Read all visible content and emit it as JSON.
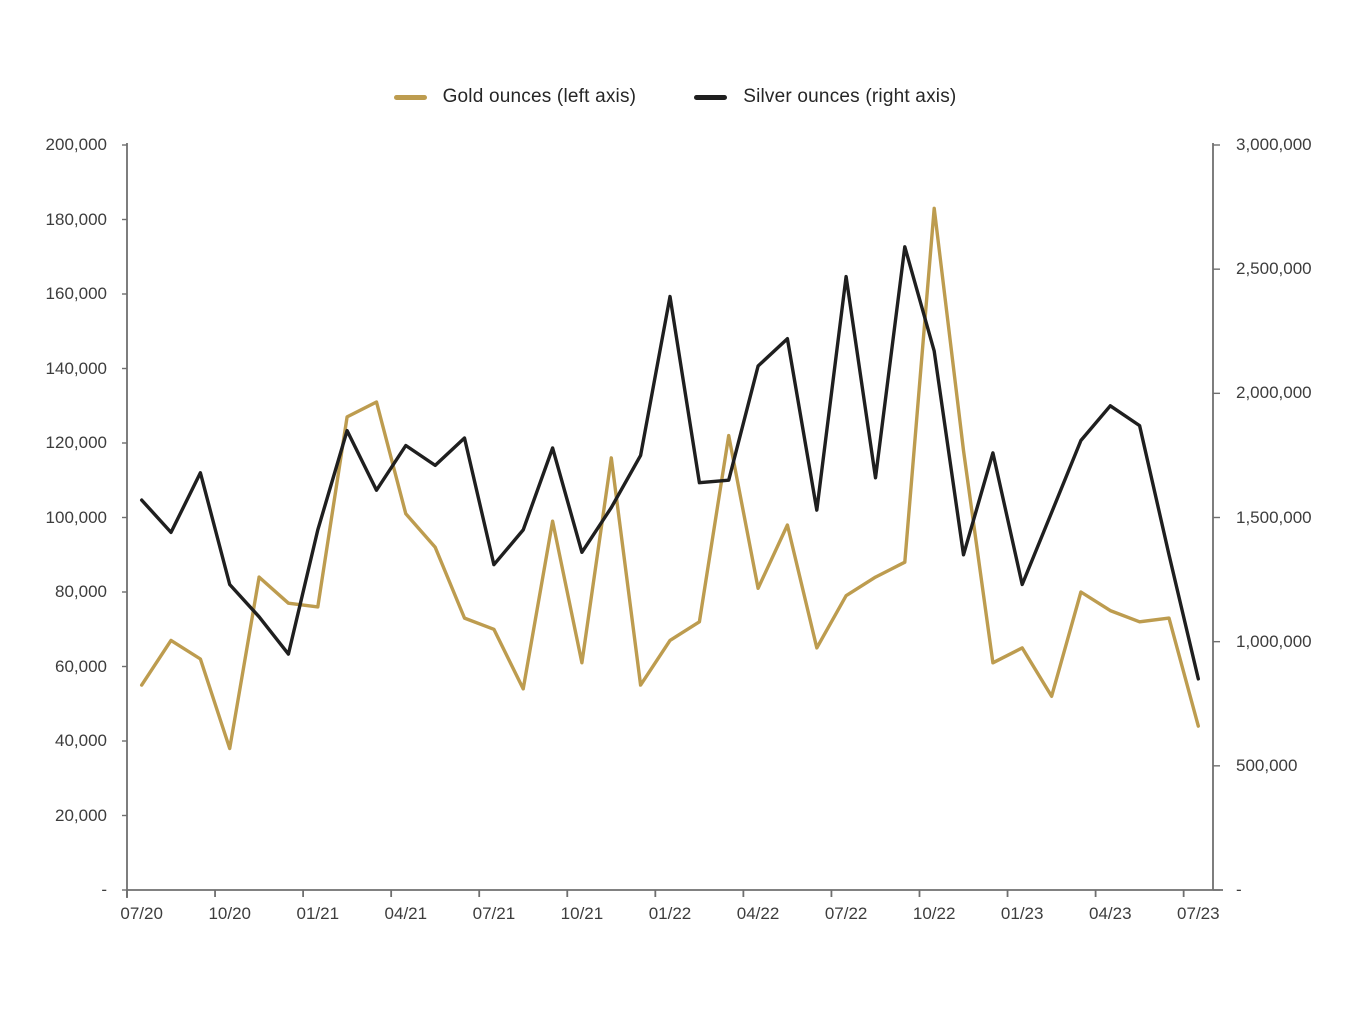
{
  "page": {
    "background": "#ffffff"
  },
  "colors": {
    "gold": "#BD9C4F",
    "silver": "#1F1F1F",
    "axis": "#6F6F6F",
    "tick_text": "#3D3D3D"
  },
  "legend": {
    "items": [
      {
        "label": "Gold ounces (left axis)",
        "color": "#BD9C4F"
      },
      {
        "label": "Silver ounces (right axis)",
        "color": "#1F1F1F"
      }
    ]
  },
  "chart_data": {
    "type": "line",
    "title": "",
    "grid": false,
    "legend_position": "top",
    "categories": [
      "07/20",
      "08/20",
      "09/20",
      "10/20",
      "11/20",
      "12/20",
      "01/21",
      "02/21",
      "03/21",
      "04/21",
      "05/21",
      "06/21",
      "07/21",
      "08/21",
      "09/21",
      "10/21",
      "11/21",
      "12/21",
      "01/22",
      "02/22",
      "03/22",
      "04/22",
      "05/22",
      "06/22",
      "07/22",
      "08/22",
      "09/22",
      "10/22",
      "11/22",
      "12/22",
      "01/23",
      "02/23",
      "03/23",
      "04/23",
      "05/23",
      "06/23",
      "07/23"
    ],
    "x_tick_labels": [
      "07/20",
      "10/20",
      "01/21",
      "04/21",
      "07/21",
      "10/21",
      "01/22",
      "04/22",
      "07/22",
      "10/22",
      "01/23",
      "04/23",
      "07/23"
    ],
    "series": [
      {
        "name": "Gold ounces (left axis)",
        "axis": "left",
        "color": "#BD9C4F",
        "values": [
          55000,
          67000,
          62000,
          38000,
          84000,
          77000,
          76000,
          127000,
          131000,
          101000,
          92000,
          73000,
          70000,
          54000,
          99000,
          61000,
          116000,
          55000,
          67000,
          72000,
          122000,
          81000,
          98000,
          65000,
          79000,
          84000,
          88000,
          183000,
          118000,
          61000,
          65000,
          52000,
          80000,
          75000,
          72000,
          73000,
          44000
        ]
      },
      {
        "name": "Silver ounces (right axis)",
        "axis": "right",
        "color": "#1F1F1F",
        "values": [
          1570000,
          1440000,
          1680000,
          1230000,
          1100000,
          950000,
          1450000,
          1850000,
          1610000,
          1790000,
          1710000,
          1820000,
          1310000,
          1450000,
          1780000,
          1360000,
          1540000,
          1750000,
          2390000,
          1640000,
          1650000,
          2110000,
          2220000,
          1530000,
          2470000,
          1660000,
          2590000,
          2170000,
          1350000,
          1760000,
          1230000,
          1520000,
          1810000,
          1950000,
          1870000,
          1350000,
          850000
        ]
      }
    ],
    "left_axis": {
      "min": 0,
      "max": 200000,
      "step": 20000,
      "tick_labels": [
        "200,000",
        "180,000",
        "160,000",
        "140,000",
        "120,000",
        "100,000",
        "80,000",
        "60,000",
        "40,000",
        "20,000",
        "-"
      ]
    },
    "right_axis": {
      "min": 0,
      "max": 3000000,
      "step": 500000,
      "tick_labels": [
        "3,000,000",
        "2,500,000",
        "2,000,000",
        "1,500,000",
        "1,000,000",
        "500,000",
        "-"
      ]
    }
  }
}
